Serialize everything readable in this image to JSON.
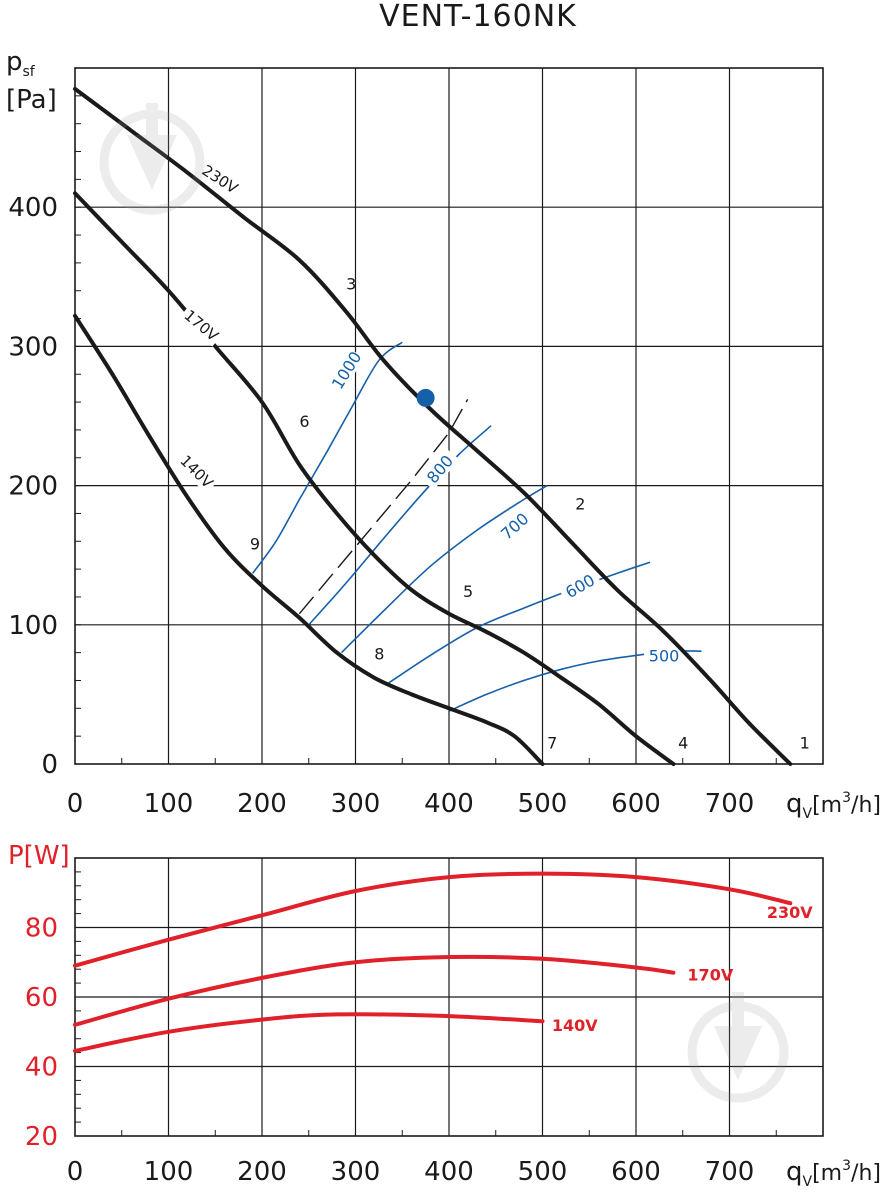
{
  "chart_data": [
    {
      "type": "line",
      "title": "VENT-160NK",
      "ylabel_main": "p",
      "ylabel_sub": "sf",
      "ylabel_unit": "[Pa]",
      "xlabel_main": "q",
      "xlabel_sub": "V",
      "xlabel_unit": "[m",
      "xlabel_exp": "3",
      "xlabel_end": "/h]",
      "xlim": [
        0,
        800
      ],
      "ylim": [
        0,
        500
      ],
      "xticks": [
        "0",
        "100",
        "200",
        "300",
        "400",
        "500",
        "600",
        "700"
      ],
      "xtick_values": [
        0,
        100,
        200,
        300,
        400,
        500,
        600,
        700
      ],
      "yticks": [
        "0",
        "100",
        "200",
        "300",
        "400"
      ],
      "ytick_values": [
        0,
        100,
        200,
        300,
        400
      ],
      "series": [
        {
          "name": "230V",
          "label": "230V",
          "label_at": [
            155,
            420
          ],
          "label_angle": 33,
          "x": [
            0,
            60,
            120,
            180,
            240,
            290,
            330,
            380,
            430,
            480,
            530,
            580,
            630,
            680,
            720,
            765
          ],
          "y": [
            485,
            455,
            425,
            393,
            362,
            325,
            290,
            255,
            225,
            195,
            160,
            125,
            95,
            60,
            30,
            0
          ]
        },
        {
          "name": "170V",
          "label": "170V",
          "label_at": [
            135,
            315
          ],
          "label_angle": 40,
          "x": [
            0,
            50,
            100,
            150,
            200,
            240,
            280,
            320,
            360,
            400,
            440,
            480,
            520,
            560,
            600,
            640
          ],
          "y": [
            410,
            375,
            340,
            300,
            260,
            215,
            180,
            150,
            125,
            108,
            95,
            80,
            62,
            43,
            20,
            0
          ]
        },
        {
          "name": "140V",
          "label": "140V",
          "label_at": [
            130,
            210
          ],
          "label_angle": 45,
          "x": [
            0,
            40,
            80,
            120,
            160,
            200,
            240,
            280,
            320,
            360,
            400,
            440,
            470,
            500
          ],
          "y": [
            322,
            280,
            235,
            192,
            155,
            128,
            105,
            80,
            62,
            50,
            40,
            30,
            20,
            0
          ]
        }
      ],
      "rpm_lines": [
        {
          "label": "1000",
          "label_at": [
            290,
            283
          ],
          "label_angle": -58,
          "x": [
            190,
            215,
            240,
            270,
            295,
            325,
            350
          ],
          "y": [
            137,
            160,
            190,
            225,
            255,
            290,
            303
          ]
        },
        {
          "label": "800",
          "label_at": [
            390,
            212
          ],
          "label_angle": -50,
          "x": [
            250,
            290,
            330,
            370,
            410,
            445
          ],
          "y": [
            100,
            130,
            162,
            193,
            222,
            243
          ]
        },
        {
          "label": "700",
          "label_at": [
            470,
            171
          ],
          "label_angle": -42,
          "x": [
            285,
            330,
            380,
            430,
            480,
            505
          ],
          "y": [
            80,
            110,
            142,
            168,
            190,
            200
          ]
        },
        {
          "label": "600",
          "label_at": [
            540,
            128
          ],
          "label_angle": -30,
          "x": [
            335,
            380,
            430,
            480,
            530,
            580,
            615
          ],
          "y": [
            58,
            78,
            98,
            112,
            125,
            137,
            145
          ]
        },
        {
          "label": "500",
          "label_at": [
            630,
            78
          ],
          "label_angle": 0,
          "x": [
            400,
            440,
            480,
            520,
            560,
            600,
            640,
            670
          ],
          "y": [
            38,
            50,
            60,
            68,
            74,
            78,
            81,
            81
          ]
        }
      ],
      "dashed_line": {
        "x": [
          240,
          280,
          320,
          360,
          400,
          420
        ],
        "y": [
          108,
          140,
          172,
          204,
          238,
          262
        ]
      },
      "operating_point": {
        "x": 375,
        "y": 263,
        "color": "#1560a8"
      },
      "point_labels": [
        {
          "text": "1",
          "x": 775,
          "y": 11
        },
        {
          "text": "2",
          "x": 535,
          "y": 183
        },
        {
          "text": "3",
          "x": 290,
          "y": 341
        },
        {
          "text": "4",
          "x": 645,
          "y": 11
        },
        {
          "text": "5",
          "x": 415,
          "y": 120
        },
        {
          "text": "6",
          "x": 240,
          "y": 242
        },
        {
          "text": "7",
          "x": 505,
          "y": 11
        },
        {
          "text": "8",
          "x": 320,
          "y": 75
        },
        {
          "text": "9",
          "x": 187,
          "y": 154
        }
      ],
      "curve_color": "#1a1a1a",
      "rpm_color": "#1560a8"
    },
    {
      "type": "line",
      "ylabel": "P[W]",
      "xlabel_main": "q",
      "xlabel_sub": "V",
      "xlabel_unit": "[m",
      "xlabel_exp": "3",
      "xlabel_end": "/h]",
      "xlim": [
        0,
        800
      ],
      "ylim": [
        20,
        100
      ],
      "xticks": [
        "0",
        "100",
        "200",
        "300",
        "400",
        "500",
        "600",
        "700"
      ],
      "xtick_values": [
        0,
        100,
        200,
        300,
        400,
        500,
        600,
        700
      ],
      "yticks": [
        "20",
        "40",
        "60",
        "80"
      ],
      "ytick_values": [
        20,
        40,
        60,
        80
      ],
      "series": [
        {
          "name": "230V",
          "label": "230V",
          "label_x": 740,
          "label_y": 84.5,
          "x": [
            0,
            100,
            200,
            300,
            400,
            500,
            600,
            700,
            765
          ],
          "y": [
            69,
            76.5,
            83.5,
            90.5,
            94.5,
            95.5,
            94.5,
            91,
            87
          ]
        },
        {
          "name": "170V",
          "label": "170V",
          "label_x": 655,
          "label_y": 66.5,
          "x": [
            0,
            100,
            200,
            300,
            400,
            500,
            600,
            640
          ],
          "y": [
            52,
            59.5,
            65.5,
            70,
            71.5,
            71,
            68.5,
            67
          ]
        },
        {
          "name": "140V",
          "label": "140V",
          "label_x": 510,
          "label_y": 52,
          "x": [
            0,
            100,
            200,
            280,
            400,
            500
          ],
          "y": [
            44.5,
            50,
            53.5,
            55,
            54.5,
            53
          ]
        }
      ],
      "curve_color": "#e0212a"
    }
  ]
}
